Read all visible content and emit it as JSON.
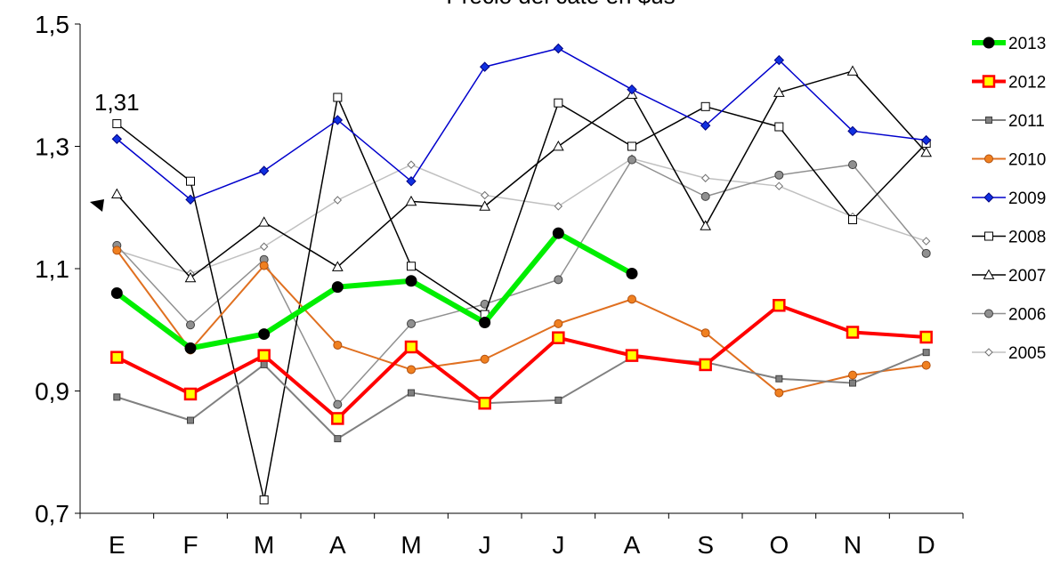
{
  "chart_data": {
    "type": "line",
    "title": "Precio del caté en $us",
    "categories": [
      "E",
      "F",
      "M",
      "A",
      "M",
      "J",
      "J",
      "A",
      "S",
      "O",
      "N",
      "D"
    ],
    "ylim": [
      0.7,
      1.5
    ],
    "yticks": [
      0.7,
      0.9,
      1.1,
      1.3,
      1.5
    ],
    "ytick_labels": [
      "0,7",
      "0,9",
      "1,1",
      "1,3",
      "1,5"
    ],
    "grid": false,
    "legend_position": "right",
    "annotations": [
      {
        "text": "1,31"
      }
    ],
    "series": [
      {
        "name": "2013",
        "color": "#00ee00",
        "marker_face": "#000000",
        "marker_edge": "#000000",
        "marker": "circle",
        "width": 6,
        "values": [
          1.06,
          0.97,
          0.993,
          1.07,
          1.08,
          1.012,
          1.158,
          1.092,
          null,
          null,
          null,
          null
        ]
      },
      {
        "name": "2012",
        "color": "#ff0000",
        "marker_face": "#ffff00",
        "marker_edge": "#ff0000",
        "marker": "square",
        "width": 4,
        "values": [
          0.955,
          0.895,
          0.958,
          0.855,
          0.972,
          0.88,
          0.987,
          0.958,
          0.943,
          1.04,
          0.996,
          0.988
        ]
      },
      {
        "name": "2011",
        "color": "#808080",
        "marker_face": "#808080",
        "marker_edge": "#404040",
        "marker": "square-small",
        "width": 2,
        "values": [
          0.89,
          0.852,
          0.943,
          0.822,
          0.897,
          0.88,
          0.885,
          0.955,
          0.947,
          0.92,
          0.913,
          0.963
        ]
      },
      {
        "name": "2010",
        "color": "#e07020",
        "marker_face": "#f08020",
        "marker_edge": "#b05010",
        "marker": "circle",
        "width": 2,
        "values": [
          1.13,
          0.967,
          1.105,
          0.975,
          0.935,
          0.952,
          1.01,
          1.05,
          0.995,
          0.897,
          0.926,
          0.942
        ]
      },
      {
        "name": "2009",
        "color": "#0000cc",
        "marker_face": "#1030e0",
        "marker_edge": "#000080",
        "marker": "diamond",
        "width": 1.5,
        "values": [
          1.312,
          1.213,
          1.26,
          1.343,
          1.243,
          1.43,
          1.46,
          1.393,
          1.334,
          1.441,
          1.325,
          1.31
        ]
      },
      {
        "name": "2008",
        "color": "#000000",
        "marker_face": "#ffffff",
        "marker_edge": "#000000",
        "marker": "square",
        "width": 1.5,
        "values": [
          1.337,
          1.243,
          0.722,
          1.38,
          1.104,
          1.025,
          1.371,
          1.3,
          1.365,
          1.332,
          1.18,
          1.305
        ]
      },
      {
        "name": "2007",
        "color": "#000000",
        "marker_face": "#ffffff",
        "marker_edge": "#000000",
        "marker": "triangle",
        "width": 1.5,
        "values": [
          1.222,
          1.085,
          1.176,
          1.103,
          1.21,
          1.202,
          1.3,
          1.385,
          1.17,
          1.388,
          1.423,
          1.29
        ]
      },
      {
        "name": "2006",
        "color": "#909090",
        "marker_face": "#909090",
        "marker_edge": "#404040",
        "marker": "circle",
        "width": 1.5,
        "values": [
          1.138,
          1.008,
          1.115,
          0.878,
          1.01,
          1.042,
          1.082,
          1.278,
          1.218,
          1.253,
          1.27,
          1.125
        ]
      },
      {
        "name": "2005",
        "color": "#c0c0c0",
        "marker_face": "#ffffff",
        "marker_edge": "#707070",
        "marker": "diamond-small",
        "width": 1.5,
        "values": [
          1.13,
          1.092,
          1.136,
          1.212,
          1.27,
          1.22,
          1.202,
          1.28,
          1.248,
          1.235,
          1.185,
          1.145
        ]
      }
    ]
  }
}
